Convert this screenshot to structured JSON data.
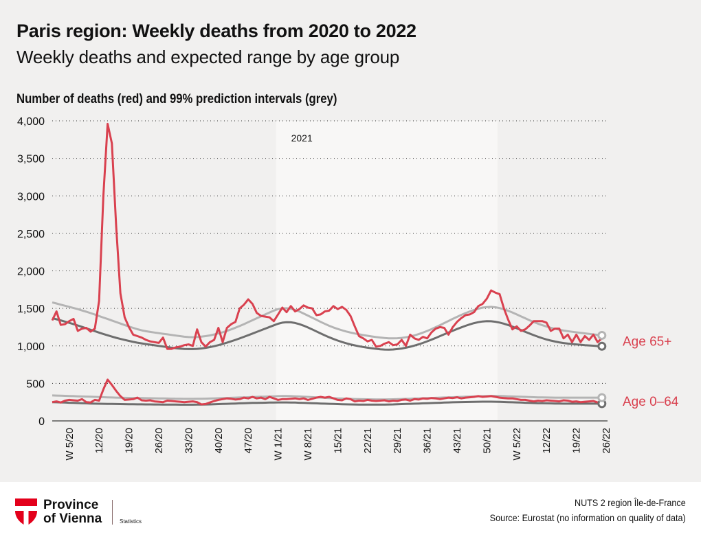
{
  "header": {
    "title": "Paris region: Weekly deaths from 2020 to 2022",
    "subtitle": "Weekly deaths and expected range by age group"
  },
  "footer": {
    "logo_line1": "Province",
    "logo_line2": "of Vienna",
    "logo_sub": "Statistics",
    "region": "NUTS 2 region Île-de-France",
    "source": "Source: Eurostat (no information on quality of data)"
  },
  "colors": {
    "deaths": "#d9414f",
    "upper": "#b4b4b4",
    "lower": "#6e6e6e",
    "logo_red": "#e3001b",
    "background": "#f1f0ef",
    "highlight_band": "#f8f7f6"
  },
  "chart_data": {
    "type": "line",
    "title": "Number of deaths (red) and 99% prediction intervals (grey)",
    "xlabel": "",
    "ylabel": "",
    "ylim": [
      0,
      4000
    ],
    "yticks": [
      0,
      500,
      1000,
      1500,
      2000,
      2500,
      3000,
      3500,
      4000
    ],
    "ytick_labels": [
      "0",
      "500",
      "1,000",
      "1,500",
      "2,000",
      "2,500",
      "3,000",
      "3,500",
      "4,000"
    ],
    "grid": true,
    "x_start_week": "W1/20",
    "x_end_week": "W26/22",
    "xtick_labels": [
      "W 5/20",
      "12/20",
      "19/20",
      "26/20",
      "33/20",
      "40/20",
      "47/20",
      "W 1/21",
      "W 8/21",
      "15/21",
      "22/21",
      "29/21",
      "36/21",
      "43/21",
      "50/21",
      "W 5/22",
      "12/22",
      "19/22",
      "26/22"
    ],
    "xtick_index": [
      4,
      11,
      18,
      25,
      32,
      39,
      46,
      53,
      60,
      67,
      74,
      81,
      88,
      95,
      102,
      109,
      116,
      123,
      130
    ],
    "highlight_band": {
      "label": "2021",
      "from_index": 53,
      "to_index": 104
    },
    "groups": [
      {
        "name": "Age 65+",
        "deaths": [
          1340,
          1460,
          1280,
          1290,
          1330,
          1360,
          1200,
          1230,
          1240,
          1190,
          1230,
          1600,
          3000,
          3960,
          3700,
          2600,
          1700,
          1380,
          1250,
          1150,
          1130,
          1110,
          1080,
          1060,
          1050,
          1040,
          1110,
          960,
          960,
          980,
          990,
          1010,
          1020,
          1000,
          1220,
          1050,
          990,
          1050,
          1080,
          1240,
          1050,
          1240,
          1290,
          1320,
          1500,
          1550,
          1620,
          1560,
          1440,
          1400,
          1390,
          1380,
          1330,
          1420,
          1510,
          1450,
          1530,
          1460,
          1490,
          1540,
          1510,
          1500,
          1410,
          1420,
          1460,
          1470,
          1530,
          1490,
          1520,
          1480,
          1400,
          1260,
          1130,
          1100,
          1060,
          1080,
          990,
          1000,
          1030,
          1050,
          1010,
          1020,
          1080,
          1000,
          1150,
          1100,
          1080,
          1120,
          1100,
          1180,
          1230,
          1250,
          1240,
          1150,
          1250,
          1320,
          1370,
          1410,
          1420,
          1450,
          1530,
          1560,
          1630,
          1740,
          1710,
          1690,
          1500,
          1350,
          1220,
          1260,
          1200,
          1220,
          1270,
          1330,
          1330,
          1330,
          1310,
          1200,
          1230,
          1230,
          1100,
          1150,
          1050,
          1150,
          1050,
          1130,
          1080,
          1150,
          1050,
          1100
        ],
        "upper": [
          1580,
          1565,
          1550,
          1535,
          1520,
          1505,
          1490,
          1472,
          1455,
          1437,
          1418,
          1398,
          1378,
          1358,
          1338,
          1318,
          1298,
          1278,
          1258,
          1240,
          1222,
          1207,
          1195,
          1186,
          1178,
          1170,
          1162,
          1154,
          1146,
          1138,
          1130,
          1122,
          1118,
          1116,
          1118,
          1123,
          1130,
          1140,
          1152,
          1166,
          1182,
          1200,
          1220,
          1242,
          1266,
          1290,
          1316,
          1342,
          1368,
          1394,
          1420,
          1445,
          1470,
          1490,
          1500,
          1502,
          1495,
          1480,
          1458,
          1432,
          1404,
          1376,
          1348,
          1320,
          1293,
          1268,
          1246,
          1226,
          1208,
          1192,
          1178,
          1165,
          1154,
          1144,
          1135,
          1126,
          1118,
          1111,
          1105,
          1101,
          1100,
          1102,
          1107,
          1115,
          1126,
          1140,
          1157,
          1177,
          1199,
          1223,
          1249,
          1276,
          1304,
          1332,
          1360,
          1387,
          1413,
          1437,
          1459,
          1479,
          1496,
          1510,
          1518,
          1520,
          1515,
          1504,
          1488,
          1468,
          1445,
          1420,
          1394,
          1368,
          1342,
          1318,
          1296,
          1276,
          1258,
          1242,
          1228,
          1216,
          1205,
          1196,
          1188,
          1181,
          1174,
          1167,
          1160,
          1153,
          1146,
          1140
        ],
        "lower": [
          1370,
          1355,
          1340,
          1324,
          1307,
          1290,
          1272,
          1253,
          1234,
          1215,
          1196,
          1177,
          1159,
          1141,
          1124,
          1108,
          1093,
          1079,
          1066,
          1054,
          1043,
          1033,
          1024,
          1016,
          1008,
          1000,
          992,
          984,
          976,
          969,
          963,
          959,
          957,
          957,
          960,
          966,
          974,
          984,
          996,
          1010,
          1026,
          1043,
          1061,
          1080,
          1100,
          1121,
          1142,
          1164,
          1186,
          1208,
          1230,
          1252,
          1274,
          1295,
          1310,
          1316,
          1314,
          1305,
          1290,
          1270,
          1246,
          1220,
          1193,
          1166,
          1140,
          1115,
          1092,
          1071,
          1052,
          1035,
          1020,
          1007,
          995,
          985,
          976,
          968,
          961,
          955,
          951,
          950,
          952,
          957,
          965,
          976,
          989,
          1004,
          1021,
          1040,
          1061,
          1083,
          1106,
          1130,
          1154,
          1178,
          1202,
          1225,
          1247,
          1268,
          1287,
          1303,
          1316,
          1325,
          1329,
          1328,
          1322,
          1311,
          1296,
          1278,
          1257,
          1235,
          1212,
          1188,
          1165,
          1143,
          1122,
          1103,
          1086,
          1071,
          1058,
          1047,
          1038,
          1031,
          1025,
          1020,
          1015,
          1010,
          1006,
          1002,
          998,
          995
        ]
      },
      {
        "name": "Age 0–64",
        "deaths": [
          250,
          260,
          245,
          270,
          280,
          275,
          270,
          290,
          250,
          245,
          280,
          270,
          420,
          550,
          480,
          400,
          330,
          280,
          285,
          290,
          310,
          275,
          270,
          275,
          260,
          255,
          250,
          270,
          265,
          260,
          255,
          250,
          255,
          260,
          250,
          220,
          225,
          245,
          265,
          280,
          290,
          300,
          295,
          285,
          290,
          310,
          300,
          320,
          300,
          310,
          290,
          320,
          300,
          280,
          290,
          290,
          295,
          300,
          290,
          300,
          280,
          295,
          310,
          320,
          310,
          320,
          300,
          280,
          275,
          300,
          290,
          260,
          270,
          265,
          280,
          270,
          265,
          270,
          275,
          260,
          270,
          265,
          280,
          285,
          270,
          290,
          285,
          300,
          295,
          305,
          300,
          290,
          300,
          310,
          305,
          315,
          300,
          310,
          315,
          320,
          330,
          320,
          325,
          330,
          320,
          310,
          305,
          300,
          300,
          290,
          280,
          280,
          270,
          260,
          270,
          265,
          275,
          270,
          265,
          260,
          275,
          270,
          255,
          260,
          250,
          255,
          260,
          265,
          245,
          270
        ],
        "upper": [
          340,
          338,
          336,
          334,
          332,
          330,
          328,
          326,
          324,
          322,
          320,
          318,
          316,
          314,
          312,
          310,
          309,
          308,
          307,
          306,
          305,
          304,
          303,
          302,
          301,
          300,
          299,
          298,
          297,
          296,
          295,
          294,
          294,
          294,
          295,
          296,
          297,
          298,
          300,
          302,
          304,
          306,
          308,
          310,
          312,
          314,
          316,
          318,
          320,
          322,
          324,
          326,
          328,
          330,
          331,
          331,
          330,
          328,
          326,
          323,
          320,
          317,
          314,
          311,
          308,
          305,
          302,
          300,
          298,
          296,
          294,
          292,
          290,
          289,
          288,
          287,
          286,
          286,
          286,
          287,
          288,
          290,
          292,
          294,
          296,
          298,
          300,
          302,
          304,
          306,
          308,
          310,
          312,
          314,
          316,
          318,
          320,
          322,
          324,
          326,
          328,
          330,
          332,
          333,
          333,
          332,
          330,
          328,
          326,
          324,
          322,
          320,
          318,
          316,
          314,
          313,
          312,
          311,
          310,
          310,
          310,
          310,
          310,
          310,
          310,
          310,
          310,
          310,
          310,
          310
        ],
        "lower": [
          250,
          248,
          246,
          244,
          242,
          240,
          238,
          236,
          234,
          232,
          230,
          229,
          228,
          227,
          226,
          225,
          224,
          223,
          222,
          222,
          221,
          221,
          220,
          220,
          219,
          219,
          218,
          218,
          217,
          217,
          216,
          216,
          216,
          216,
          217,
          218,
          219,
          220,
          222,
          224,
          226,
          228,
          230,
          232,
          234,
          236,
          238,
          240,
          241,
          242,
          243,
          244,
          245,
          246,
          246,
          246,
          245,
          244,
          242,
          240,
          238,
          236,
          234,
          232,
          230,
          228,
          226,
          224,
          222,
          221,
          220,
          219,
          218,
          218,
          217,
          217,
          217,
          217,
          218,
          219,
          220,
          222,
          224,
          226,
          228,
          230,
          232,
          234,
          236,
          238,
          240,
          242,
          244,
          246,
          248,
          250,
          251,
          252,
          253,
          254,
          255,
          256,
          256,
          256,
          255,
          254,
          252,
          250,
          248,
          246,
          244,
          242,
          240,
          238,
          236,
          235,
          234,
          233,
          232,
          231,
          230,
          230,
          230,
          230,
          230,
          230,
          230,
          230,
          230,
          230
        ]
      }
    ]
  }
}
